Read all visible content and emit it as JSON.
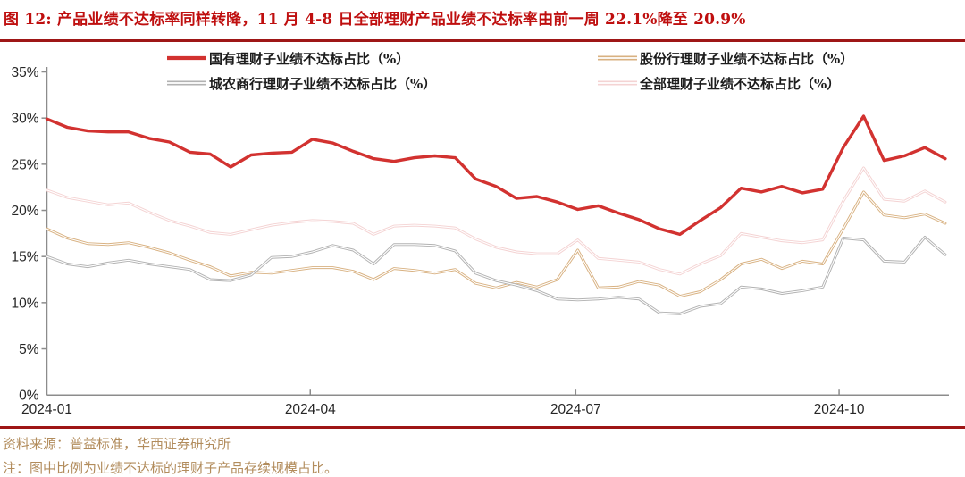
{
  "title": "图 12: 产品业绩不达标率同样转降，11 月 4-8 日全部理财产品业绩不达标率由前一周 22.1%降至 20.9%",
  "footer": {
    "source": "资料来源：普益标准，华西证券研究所",
    "note": "注：图中比例为业绩不达标的理财子产品存续规模占比。"
  },
  "colors": {
    "title_red": "#bf0f0f",
    "rule_red": "#9e1616",
    "footer_tan": "#b28c5c",
    "axis_gray": "#8c8c8c"
  },
  "chart_data": {
    "type": "line",
    "title": "",
    "xlabel": "",
    "ylabel": "",
    "grid": false,
    "legend_position": "top",
    "ylim": [
      0,
      35
    ],
    "y_tick_labels": [
      "0%",
      "5%",
      "10%",
      "15%",
      "20%",
      "25%",
      "30%",
      "35%"
    ],
    "x_tick_labels": [
      "2024-01",
      "2024-04",
      "2024-07",
      "2024-10"
    ],
    "x_tick_week_index": [
      0,
      12.9,
      25.9,
      38.8
    ],
    "x_unit": "week (weekly observations, 2024-01 through early 2024-11)",
    "n_points": 45,
    "series": [
      {
        "name": "国有理财子业绩不达标占比（%）",
        "color": "#d23230",
        "style": "solid-thick",
        "values": [
          29.9,
          29.0,
          28.6,
          28.5,
          28.5,
          27.8,
          27.4,
          26.3,
          26.1,
          24.7,
          26.0,
          26.2,
          26.3,
          27.7,
          27.3,
          26.4,
          25.6,
          25.3,
          25.7,
          25.9,
          25.7,
          23.4,
          22.6,
          21.3,
          21.5,
          20.9,
          20.1,
          20.5,
          19.7,
          19.0,
          18.0,
          17.4,
          18.9,
          20.3,
          22.4,
          22.0,
          22.6,
          21.9,
          22.3,
          26.8,
          30.2,
          25.4,
          25.9,
          26.8,
          25.6
        ]
      },
      {
        "name": "股份行理财子业绩不达标占比（%）",
        "color": "#d8b181",
        "style": "double",
        "values": [
          18.0,
          17.0,
          16.4,
          16.3,
          16.5,
          16.0,
          15.4,
          14.6,
          13.9,
          12.9,
          13.3,
          13.2,
          13.5,
          13.8,
          13.8,
          13.4,
          12.5,
          13.7,
          13.5,
          13.2,
          13.6,
          12.1,
          11.6,
          12.2,
          11.7,
          12.5,
          15.7,
          11.6,
          11.7,
          12.3,
          11.9,
          10.7,
          11.2,
          12.5,
          14.2,
          14.7,
          13.7,
          14.5,
          14.2,
          18.0,
          22.0,
          19.5,
          19.2,
          19.6,
          18.6
        ]
      },
      {
        "name": "城农商行理财子业绩不达标占比（%）",
        "color": "#b2b2b2",
        "style": "double",
        "values": [
          15.0,
          14.2,
          13.9,
          14.3,
          14.6,
          14.2,
          13.9,
          13.6,
          12.5,
          12.4,
          13.0,
          14.9,
          15.0,
          15.5,
          16.2,
          15.7,
          14.2,
          16.3,
          16.3,
          16.2,
          15.6,
          13.2,
          12.4,
          11.9,
          11.3,
          10.4,
          10.3,
          10.4,
          10.6,
          10.4,
          8.9,
          8.8,
          9.6,
          9.9,
          11.7,
          11.5,
          11.0,
          11.3,
          11.7,
          17.0,
          16.8,
          14.5,
          14.4,
          17.1,
          15.2
        ]
      },
      {
        "name": "全部理财子业绩不达标占比（%）",
        "color": "#f4d3d3",
        "style": "double",
        "values": [
          22.2,
          21.4,
          21.0,
          20.6,
          20.8,
          19.8,
          18.9,
          18.3,
          17.6,
          17.4,
          17.9,
          18.4,
          18.7,
          18.9,
          18.8,
          18.6,
          17.4,
          18.3,
          18.4,
          18.3,
          18.1,
          16.9,
          16.0,
          15.5,
          15.3,
          15.3,
          16.8,
          14.8,
          14.6,
          14.4,
          13.6,
          13.1,
          14.2,
          15.1,
          17.5,
          17.1,
          16.7,
          16.5,
          16.8,
          21.0,
          24.6,
          21.2,
          21.0,
          22.1,
          20.9
        ]
      }
    ]
  }
}
